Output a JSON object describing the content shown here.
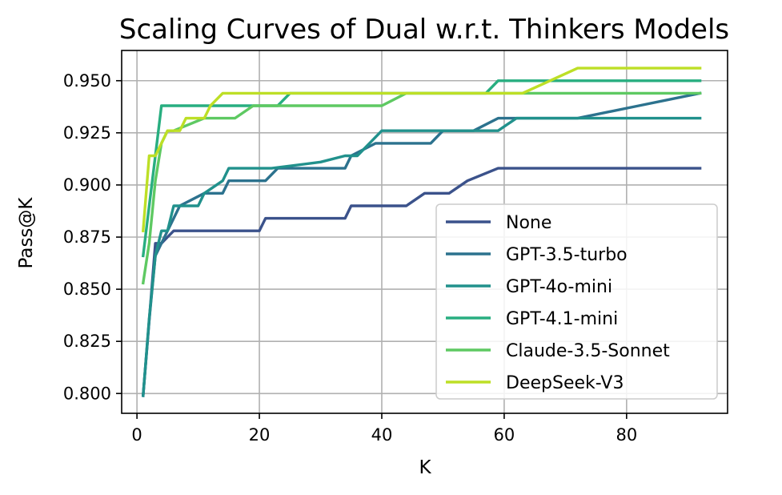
{
  "chart_data": {
    "type": "line",
    "title": "Scaling Curves of Dual w.r.t. Thinkers Models",
    "xlabel": "K",
    "ylabel": "Pass@K",
    "xlim": [
      -2.5,
      96.5
    ],
    "ylim": [
      0.7905,
      0.9645
    ],
    "xticks": [
      0,
      20,
      40,
      60,
      80
    ],
    "yticks": [
      0.8,
      0.825,
      0.85,
      0.875,
      0.9,
      0.925,
      0.95
    ],
    "ytick_labels": [
      "0.800",
      "0.825",
      "0.850",
      "0.875",
      "0.900",
      "0.925",
      "0.950"
    ],
    "grid": true,
    "legend_position": "lower-right",
    "series": [
      {
        "name": "None",
        "color": "#3b528b",
        "points": [
          [
            1,
            0.799
          ],
          [
            2,
            0.835
          ],
          [
            3,
            0.872
          ],
          [
            4,
            0.872
          ],
          [
            5,
            0.875
          ],
          [
            6,
            0.878
          ],
          [
            10,
            0.878
          ],
          [
            20,
            0.878
          ],
          [
            21,
            0.884
          ],
          [
            34,
            0.884
          ],
          [
            35,
            0.89
          ],
          [
            44,
            0.89
          ],
          [
            47,
            0.896
          ],
          [
            51,
            0.896
          ],
          [
            54,
            0.902
          ],
          [
            59,
            0.908
          ],
          [
            92,
            0.908
          ]
        ]
      },
      {
        "name": "GPT-3.5-turbo",
        "color": "#2c728e",
        "points": [
          [
            1,
            0.799
          ],
          [
            2,
            0.835
          ],
          [
            3,
            0.866
          ],
          [
            4,
            0.872
          ],
          [
            5,
            0.878
          ],
          [
            6,
            0.884
          ],
          [
            7,
            0.89
          ],
          [
            11,
            0.896
          ],
          [
            14,
            0.896
          ],
          [
            15,
            0.902
          ],
          [
            19,
            0.902
          ],
          [
            20,
            0.902
          ],
          [
            21,
            0.902
          ],
          [
            23,
            0.908
          ],
          [
            34,
            0.908
          ],
          [
            35,
            0.914
          ],
          [
            39,
            0.92
          ],
          [
            48,
            0.92
          ],
          [
            50,
            0.926
          ],
          [
            55,
            0.926
          ],
          [
            59,
            0.932
          ],
          [
            72,
            0.932
          ],
          [
            82,
            0.938
          ],
          [
            92,
            0.944
          ]
        ]
      },
      {
        "name": "GPT-4o-mini",
        "color": "#21918c",
        "points": [
          [
            1,
            0.799
          ],
          [
            2,
            0.836
          ],
          [
            3,
            0.866
          ],
          [
            4,
            0.878
          ],
          [
            5,
            0.878
          ],
          [
            6,
            0.89
          ],
          [
            10,
            0.89
          ],
          [
            11,
            0.896
          ],
          [
            14,
            0.902
          ],
          [
            15,
            0.908
          ],
          [
            22,
            0.908
          ],
          [
            30,
            0.911
          ],
          [
            34,
            0.914
          ],
          [
            36,
            0.914
          ],
          [
            40,
            0.926
          ],
          [
            53,
            0.926
          ],
          [
            59,
            0.926
          ],
          [
            62,
            0.932
          ],
          [
            92,
            0.932
          ]
        ]
      },
      {
        "name": "GPT-4.1-mini",
        "color": "#28ae80",
        "points": [
          [
            1,
            0.866
          ],
          [
            2,
            0.89
          ],
          [
            3,
            0.914
          ],
          [
            4,
            0.938
          ],
          [
            23,
            0.938
          ],
          [
            25,
            0.944
          ],
          [
            57,
            0.944
          ],
          [
            59,
            0.95
          ],
          [
            92,
            0.95
          ]
        ]
      },
      {
        "name": "Claude-3.5-Sonnet",
        "color": "#5ec962",
        "points": [
          [
            1,
            0.853
          ],
          [
            2,
            0.872
          ],
          [
            3,
            0.902
          ],
          [
            4,
            0.92
          ],
          [
            5,
            0.926
          ],
          [
            6,
            0.926
          ],
          [
            11,
            0.932
          ],
          [
            16,
            0.932
          ],
          [
            19,
            0.938
          ],
          [
            40,
            0.938
          ],
          [
            44,
            0.944
          ],
          [
            92,
            0.944
          ]
        ]
      },
      {
        "name": "DeepSeek-V3",
        "color": "#bddf26",
        "points": [
          [
            1,
            0.878
          ],
          [
            2,
            0.914
          ],
          [
            3,
            0.914
          ],
          [
            4,
            0.92
          ],
          [
            5,
            0.926
          ],
          [
            7,
            0.926
          ],
          [
            8,
            0.932
          ],
          [
            11,
            0.932
          ],
          [
            12,
            0.938
          ],
          [
            14,
            0.944
          ],
          [
            61,
            0.944
          ],
          [
            63,
            0.944
          ],
          [
            72,
            0.956
          ],
          [
            92,
            0.956
          ]
        ]
      }
    ]
  }
}
